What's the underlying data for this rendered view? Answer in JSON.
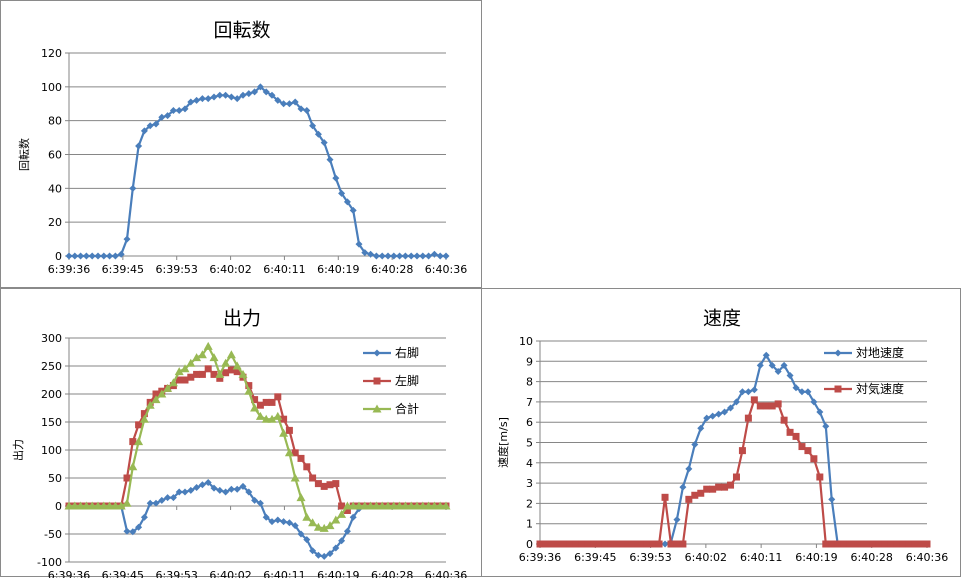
{
  "colors": {
    "blue": "#4a7ebb",
    "red": "#be4b48",
    "green": "#98b954"
  },
  "chart_data": [
    {
      "type": "line",
      "title": "回転数",
      "ylabel": "回転数",
      "ylim": [
        0,
        120
      ],
      "yticks": [
        0,
        20,
        40,
        60,
        80,
        100,
        120
      ],
      "xticks": [
        "6:39:36",
        "6:39:45",
        "6:39:53",
        "6:40:02",
        "6:40:11",
        "6:40:19",
        "6:40:28",
        "6:40:36"
      ],
      "grid": "horizontal",
      "series": [
        {
          "color": "blue",
          "marker": "diamond",
          "values": [
            0,
            0,
            0,
            0,
            0,
            0,
            0,
            0,
            0,
            1,
            10,
            40,
            65,
            74,
            77,
            78,
            82,
            83,
            86,
            86,
            87,
            91,
            92,
            93,
            93,
            94,
            95,
            95,
            94,
            93,
            95,
            96,
            97,
            100,
            97,
            95,
            92,
            90,
            90,
            91,
            87,
            86,
            77,
            72,
            67,
            57,
            46,
            37,
            32,
            27,
            7,
            2,
            1,
            0,
            0,
            0,
            0,
            0,
            0,
            0,
            0,
            0,
            0,
            1,
            0,
            0
          ]
        }
      ]
    },
    {
      "type": "line",
      "title": "出力",
      "ylabel": "出力",
      "ylim": [
        -100,
        300
      ],
      "yticks": [
        -100,
        -50,
        0,
        50,
        100,
        150,
        200,
        250,
        300
      ],
      "xticks": [
        "6:39:36",
        "6:39:45",
        "6:39:53",
        "6:40:02",
        "6:40:11",
        "6:40:19",
        "6:40:28",
        "6:40:36"
      ],
      "grid": "horizontal",
      "legend": "right",
      "series": [
        {
          "name": "右脚",
          "color": "blue",
          "marker": "diamond",
          "values": [
            0,
            0,
            0,
            0,
            0,
            0,
            0,
            0,
            0,
            0,
            -45,
            -46,
            -38,
            -20,
            5,
            5,
            10,
            15,
            15,
            25,
            25,
            28,
            33,
            38,
            42,
            32,
            28,
            25,
            30,
            30,
            35,
            25,
            10,
            5,
            -20,
            -28,
            -25,
            -28,
            -30,
            -35,
            -50,
            -60,
            -80,
            -88,
            -90,
            -85,
            -75,
            -62,
            -45,
            -20,
            -5,
            0,
            0,
            0,
            0,
            0,
            0,
            0,
            0,
            0,
            0,
            0,
            0,
            0,
            0,
            0
          ]
        },
        {
          "name": "左脚",
          "color": "red",
          "marker": "square",
          "values": [
            0,
            0,
            0,
            0,
            0,
            0,
            0,
            0,
            0,
            0,
            50,
            115,
            145,
            165,
            185,
            200,
            205,
            210,
            215,
            225,
            225,
            230,
            235,
            235,
            245,
            235,
            228,
            238,
            243,
            240,
            230,
            215,
            190,
            180,
            185,
            185,
            195,
            155,
            135,
            95,
            85,
            70,
            50,
            40,
            35,
            38,
            40,
            0,
            -8,
            0,
            0,
            0,
            0,
            0,
            0,
            0,
            0,
            0,
            0,
            0,
            0,
            0,
            0,
            0,
            0,
            0
          ]
        },
        {
          "name": "合計",
          "color": "green",
          "marker": "triangle",
          "values": [
            0,
            0,
            0,
            0,
            0,
            0,
            0,
            0,
            0,
            0,
            5,
            70,
            115,
            155,
            180,
            190,
            200,
            210,
            220,
            240,
            245,
            255,
            265,
            270,
            285,
            265,
            235,
            255,
            270,
            250,
            235,
            205,
            175,
            160,
            155,
            155,
            160,
            130,
            95,
            50,
            15,
            -20,
            -30,
            -38,
            -40,
            -35,
            -25,
            -15,
            0,
            0,
            0,
            0,
            0,
            0,
            0,
            0,
            0,
            0,
            0,
            0,
            0,
            0,
            0,
            0,
            0,
            0
          ]
        }
      ]
    },
    {
      "type": "line",
      "title": "速度",
      "ylabel": "速度[m/s]",
      "ylim": [
        0,
        10
      ],
      "yticks": [
        0,
        1,
        2,
        3,
        4,
        5,
        6,
        7,
        8,
        9,
        10
      ],
      "xticks": [
        "6:39:36",
        "6:39:45",
        "6:39:53",
        "6:40:02",
        "6:40:11",
        "6:40:19",
        "6:40:28",
        "6:40:36"
      ],
      "grid": "horizontal",
      "legend": "right",
      "series": [
        {
          "name": "対地速度",
          "color": "blue",
          "marker": "diamond",
          "values": [
            0,
            0,
            0,
            0,
            0,
            0,
            0,
            0,
            0,
            0,
            0,
            0,
            0,
            0,
            0,
            0,
            0,
            0,
            0,
            0,
            0,
            0,
            0.1,
            1.2,
            2.8,
            3.7,
            4.9,
            5.7,
            6.2,
            6.3,
            6.4,
            6.5,
            6.7,
            7.0,
            7.5,
            7.5,
            7.6,
            8.8,
            9.3,
            8.8,
            8.5,
            8.8,
            8.3,
            7.7,
            7.5,
            7.5,
            7.0,
            6.5,
            5.8,
            2.2,
            0,
            0,
            0,
            0,
            0,
            0,
            0,
            0,
            0,
            0,
            0,
            0,
            0,
            0,
            0,
            0
          ]
        },
        {
          "name": "対気速度",
          "color": "red",
          "marker": "square",
          "values": [
            0,
            0,
            0,
            0,
            0,
            0,
            0,
            0,
            0,
            0,
            0,
            0,
            0,
            0,
            0,
            0,
            0,
            0,
            0,
            0,
            0,
            2.3,
            0,
            0,
            0,
            2.2,
            2.4,
            2.5,
            2.7,
            2.7,
            2.8,
            2.8,
            2.9,
            3.3,
            4.6,
            6.2,
            7.1,
            6.8,
            6.8,
            6.8,
            6.9,
            6.1,
            5.5,
            5.3,
            4.8,
            4.6,
            4.2,
            3.3,
            0,
            0,
            0,
            0,
            0,
            0,
            0,
            0,
            0,
            0,
            0,
            0,
            0,
            0,
            0,
            0,
            0,
            0
          ]
        }
      ]
    }
  ]
}
